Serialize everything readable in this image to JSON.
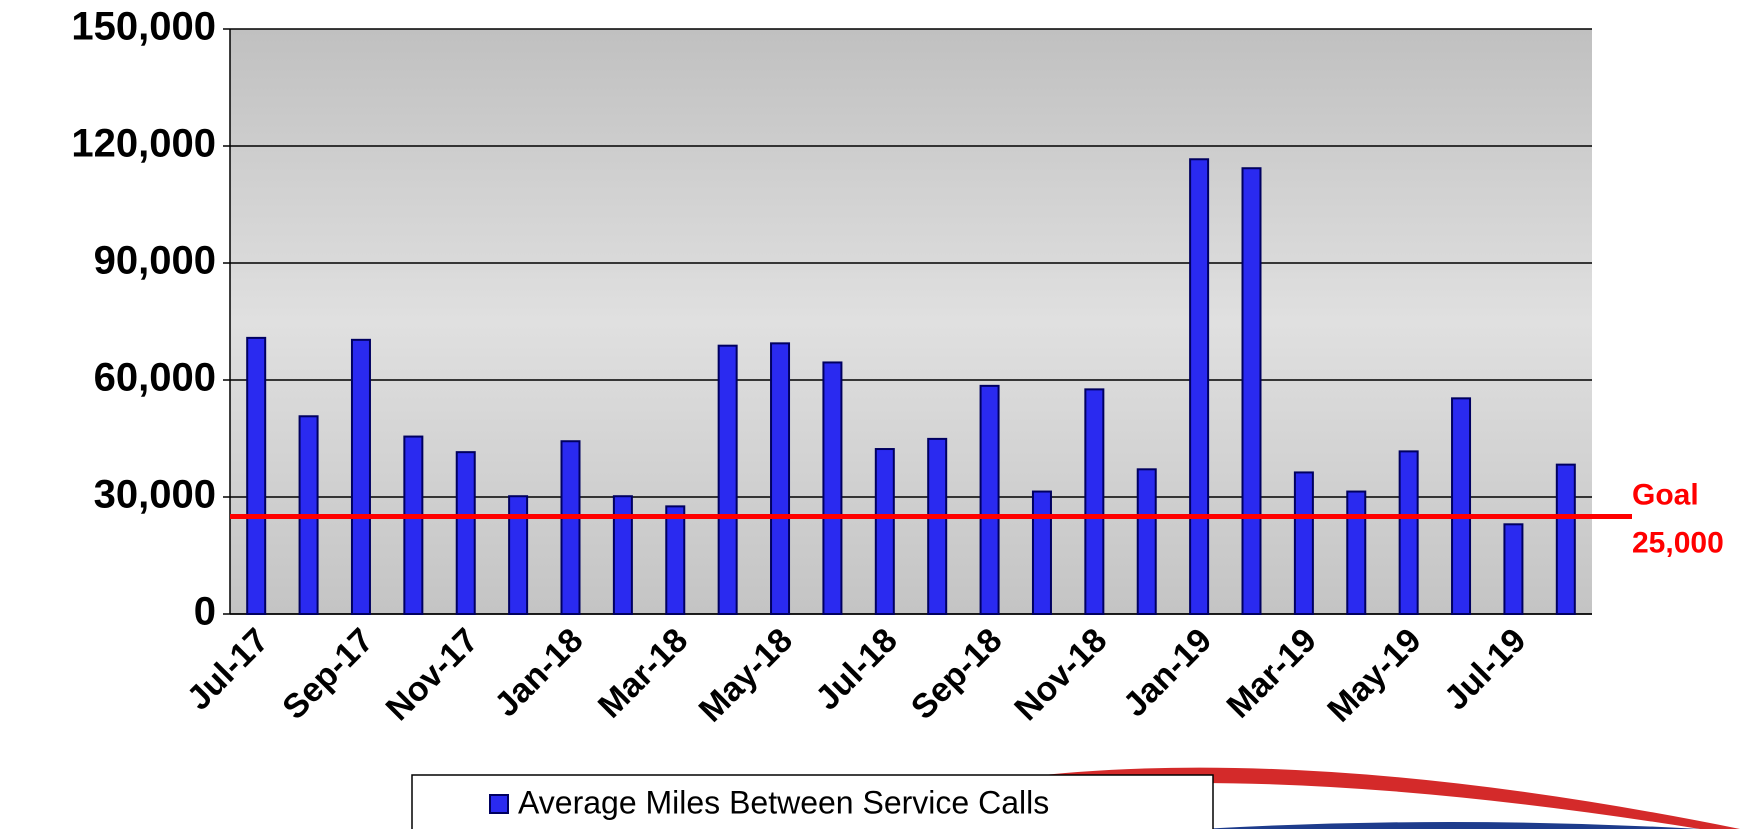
{
  "chart_data": {
    "type": "bar",
    "categories": [
      "Jul-17",
      null,
      "Sep-17",
      null,
      "Nov-17",
      null,
      "Jan-18",
      null,
      "Mar-18",
      null,
      "May-18",
      null,
      "Jul-18",
      null,
      "Sep-18",
      null,
      "Nov-18",
      null,
      "Jan-19",
      null,
      "Mar-19",
      null,
      "May-19",
      null,
      "Jul-19",
      null
    ],
    "series": [
      {
        "name": "Average Miles Between Service Calls",
        "color": "#2a2af0",
        "values": [
          70800,
          50700,
          70300,
          45500,
          41500,
          30200,
          44300,
          30200,
          27600,
          68800,
          69400,
          64500,
          42300,
          44900,
          58500,
          31400,
          57600,
          37100,
          116600,
          114300,
          36300,
          31400,
          41700,
          55300,
          23000,
          38300
        ]
      }
    ],
    "ylim": [
      0,
      150000
    ],
    "yticks": [
      0,
      {
        "value": 30000,
        "label": "30,000"
      },
      {
        "value": 60000,
        "label": "60,000"
      },
      {
        "value": 90000,
        "label": "90,000"
      },
      {
        "value": 120000,
        "label": "120,000"
      },
      {
        "value": 150000,
        "label": "150,000"
      }
    ],
    "grid": true,
    "goal": {
      "value": 25000,
      "name": "Goal",
      "label": "25,000",
      "color": "#ff0000"
    }
  }
}
